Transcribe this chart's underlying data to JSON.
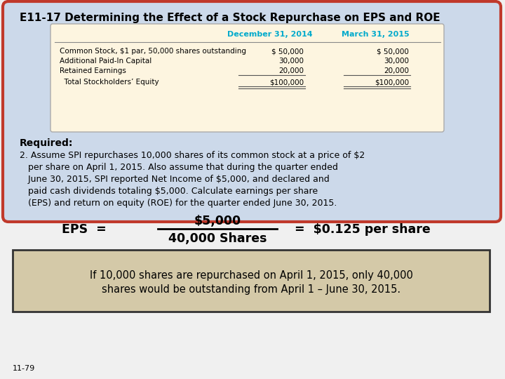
{
  "title": "E11-17 Determining the Effect of a Stock Repurchase on EPS and ROE",
  "outer_bg": "#f0f0f0",
  "main_bg": "#ccd9ea",
  "main_border": "#c0392b",
  "table_bg": "#fdf5e0",
  "table_border": "#aaaaaa",
  "table_header_color": "#00aacc",
  "table_headers": [
    "December 31, 2014",
    "March 31, 2015"
  ],
  "table_rows": [
    [
      "Common Stock, $1 par, 50,000 shares outstanding",
      "$ 50,000",
      "$ 50,000"
    ],
    [
      "Additional Paid-In Capital",
      "30,000",
      "30,000"
    ],
    [
      "Retained Earnings",
      "20,000",
      "20,000"
    ],
    [
      "  Total Stockholders’ Equity",
      "$100,000",
      "$100,000"
    ]
  ],
  "required_text": "Required:",
  "body_line1": "2. Assume SPI repurchases 10,000 shares of its common stock at a price of $2",
  "body_line2": "   per share on April 1, 2015. Also assume that during the quarter ended",
  "body_line3": "   June 30, 2015, SPI reported Net Income of $5,000, and declared and",
  "body_line4": "   paid cash dividends totaling $5,000. Calculate earnings per share",
  "body_line5": "   (EPS) and return on equity (ROE) for the quarter ended June 30, 2015.",
  "eps_label": "EPS  =",
  "eps_numerator": "$5,000",
  "eps_denominator": "40,000 Shares",
  "eps_result": "=  $0.125 per share",
  "note_line1": "If 10,000 shares are repurchased on April 1, 2015, only 40,000",
  "note_line2": "shares would be outstanding from April 1 – June 30, 2015.",
  "note_bg": "#d4c9a8",
  "note_border": "#333333",
  "footer": "11-79"
}
